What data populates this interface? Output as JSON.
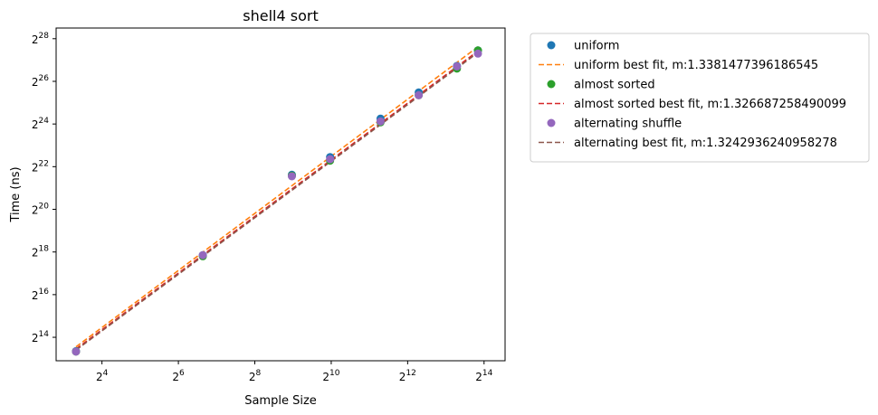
{
  "chart_data": {
    "type": "scatter",
    "title": "shell4 sort",
    "xlabel": "Sample Size",
    "ylabel": "Time (ns)",
    "xscale": "log2",
    "yscale": "log2",
    "xlim_log2": [
      2.8,
      14.55
    ],
    "ylim_log2": [
      12.9,
      28.5
    ],
    "xticks": [
      {
        "base": "2",
        "exp": "4",
        "value_log2": 4
      },
      {
        "base": "2",
        "exp": "6",
        "value_log2": 6
      },
      {
        "base": "2",
        "exp": "8",
        "value_log2": 8
      },
      {
        "base": "2",
        "exp": "10",
        "value_log2": 10
      },
      {
        "base": "2",
        "exp": "12",
        "value_log2": 12
      },
      {
        "base": "2",
        "exp": "14",
        "value_log2": 14
      }
    ],
    "yticks": [
      {
        "base": "2",
        "exp": "14",
        "value_log2": 14
      },
      {
        "base": "2",
        "exp": "16",
        "value_log2": 16
      },
      {
        "base": "2",
        "exp": "18",
        "value_log2": 18
      },
      {
        "base": "2",
        "exp": "20",
        "value_log2": 20
      },
      {
        "base": "2",
        "exp": "22",
        "value_log2": 22
      },
      {
        "base": "2",
        "exp": "24",
        "value_log2": 24
      },
      {
        "base": "2",
        "exp": "26",
        "value_log2": 26
      },
      {
        "base": "2",
        "exp": "28",
        "value_log2": 28
      }
    ],
    "legend_position": "outside-right",
    "series": [
      {
        "name": "uniform",
        "kind": "scatter",
        "color": "#1f77b4",
        "x_log2": [
          3.32,
          6.64,
          8.97,
          9.97,
          11.29,
          12.29,
          13.29,
          13.84
        ],
        "y_log2": [
          13.35,
          17.85,
          21.62,
          22.45,
          24.25,
          25.48,
          26.72,
          27.45
        ]
      },
      {
        "name": "uniform best fit, m:1.3381477396186545",
        "kind": "fit",
        "color": "#ff7f0e",
        "x_log2": [
          3.32,
          13.84
        ],
        "y_log2": [
          13.55,
          27.62
        ]
      },
      {
        "name": "almost sorted",
        "kind": "scatter",
        "color": "#2ca02c",
        "x_log2": [
          3.32,
          6.64,
          8.97,
          9.97,
          11.29,
          12.29,
          13.29,
          13.84
        ],
        "y_log2": [
          13.33,
          17.8,
          21.58,
          22.28,
          24.08,
          25.35,
          26.6,
          27.45
        ]
      },
      {
        "name": "almost sorted best fit, m:1.326687258490099",
        "kind": "fit",
        "color": "#d62728",
        "x_log2": [
          3.32,
          13.84
        ],
        "y_log2": [
          13.45,
          27.42
        ]
      },
      {
        "name": "alternating shuffle",
        "kind": "scatter",
        "color": "#9467bd",
        "x_log2": [
          3.32,
          6.64,
          8.97,
          9.97,
          11.29,
          12.29,
          13.29,
          13.84
        ],
        "y_log2": [
          13.33,
          17.85,
          21.55,
          22.35,
          24.12,
          25.35,
          26.7,
          27.3
        ]
      },
      {
        "name": "alternating best fit, m:1.3242936240958278",
        "kind": "fit",
        "color": "#8c564b",
        "x_log2": [
          3.32,
          13.84
        ],
        "y_log2": [
          13.4,
          27.35
        ]
      }
    ]
  }
}
